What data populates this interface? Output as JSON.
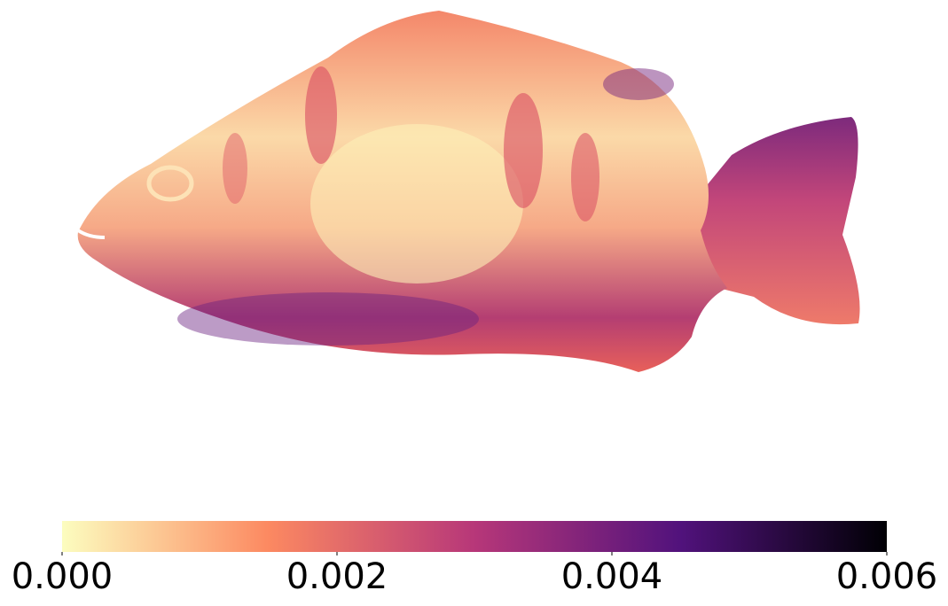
{
  "chart_data": {
    "type": "colorbar",
    "colormap": [
      "#fcfdbf",
      "#fc8961",
      "#b73779",
      "#51127c",
      "#000004"
    ],
    "xlim": [
      0,
      0.006
    ],
    "xticks": [
      {
        "value": 0,
        "label": "0.000"
      },
      {
        "value": 0.002,
        "label": "0.002"
      },
      {
        "value": 0.004,
        "label": "0.004"
      },
      {
        "value": 0.006,
        "label": "0.006"
      }
    ]
  }
}
